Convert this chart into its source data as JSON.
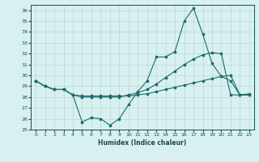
{
  "title": "",
  "xlabel": "Humidex (Indice chaleur)",
  "background_color": "#d8f0f0",
  "grid_color": "#b8d8d8",
  "line_color": "#1a6b6b",
  "xlim": [
    -0.5,
    23.5
  ],
  "ylim": [
    25,
    36.5
  ],
  "yticks": [
    25,
    26,
    27,
    28,
    29,
    30,
    31,
    32,
    33,
    34,
    35,
    36
  ],
  "xticks": [
    0,
    1,
    2,
    3,
    4,
    5,
    6,
    7,
    8,
    9,
    10,
    11,
    12,
    13,
    14,
    15,
    16,
    17,
    18,
    19,
    20,
    21,
    22,
    23
  ],
  "series1_x": [
    0,
    1,
    2,
    3,
    4,
    5,
    6,
    7,
    8,
    9,
    10,
    11,
    12,
    13,
    14,
    15,
    16,
    17,
    18,
    19,
    20,
    21,
    22,
    23
  ],
  "series1_y": [
    29.5,
    29.0,
    28.7,
    28.7,
    28.2,
    25.7,
    26.1,
    26.0,
    25.4,
    26.0,
    27.3,
    28.5,
    29.5,
    31.7,
    31.7,
    32.2,
    35.0,
    36.2,
    33.8,
    31.1,
    29.9,
    29.5,
    28.2,
    28.3
  ],
  "series2_x": [
    0,
    1,
    2,
    3,
    4,
    5,
    6,
    7,
    8,
    9,
    10,
    11,
    12,
    13,
    14,
    15,
    16,
    17,
    18,
    19,
    20,
    21,
    22,
    23
  ],
  "series2_y": [
    29.5,
    29.0,
    28.7,
    28.7,
    28.2,
    28.0,
    28.0,
    28.0,
    28.0,
    28.0,
    28.2,
    28.4,
    28.7,
    29.2,
    29.8,
    30.4,
    31.0,
    31.5,
    31.9,
    32.1,
    32.0,
    28.2,
    28.2,
    28.2
  ],
  "series3_x": [
    0,
    1,
    2,
    3,
    4,
    5,
    6,
    7,
    8,
    9,
    10,
    11,
    12,
    13,
    14,
    15,
    16,
    17,
    18,
    19,
    20,
    21,
    22,
    23
  ],
  "series3_y": [
    29.5,
    29.0,
    28.7,
    28.7,
    28.2,
    28.1,
    28.1,
    28.1,
    28.1,
    28.1,
    28.1,
    28.2,
    28.3,
    28.5,
    28.7,
    28.9,
    29.1,
    29.3,
    29.5,
    29.7,
    29.9,
    30.0,
    28.2,
    28.2
  ]
}
